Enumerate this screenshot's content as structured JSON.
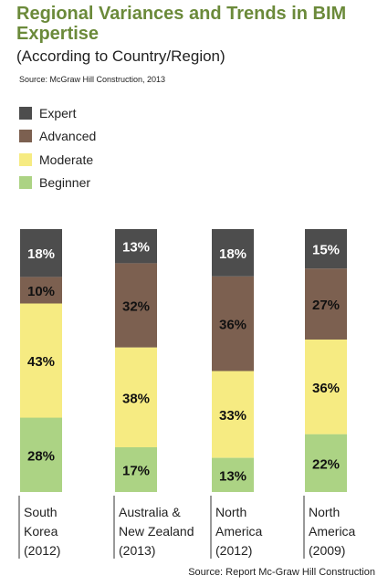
{
  "title": "Regional Variances and Trends in BIM Expertise",
  "subtitle": "(According to Country/Region)",
  "source_top": "Source: McGraw Hill Construction, 2013",
  "source_bottom": "Source: Report Mc-Graw Hill Construction",
  "colors": {
    "Expert": "#4d4d4d",
    "Advanced": "#7c6050",
    "Moderate": "#f6eb82",
    "Beginner": "#acd384",
    "title": "#6b8a3a"
  },
  "chart_data": {
    "type": "bar",
    "stacked": true,
    "title": "Regional Variances and Trends in BIM Expertise",
    "subtitle": "(According to Country/Region)",
    "legend_position": "top-left",
    "grid": false,
    "categories": [
      [
        "South",
        "Korea",
        "(2012)"
      ],
      [
        "Australia &",
        "New Zealand",
        "(2013)"
      ],
      [
        "North",
        "America",
        "(2012)"
      ],
      [
        "North",
        "America",
        "(2009)"
      ]
    ],
    "series": [
      {
        "name": "Beginner",
        "values": [
          28,
          17,
          13,
          22
        ],
        "labels": [
          "28%",
          "17%",
          "13%",
          "22%"
        ]
      },
      {
        "name": "Moderate",
        "values": [
          43,
          38,
          33,
          36
        ],
        "labels": [
          "43%",
          "38%",
          "33%",
          "36%"
        ]
      },
      {
        "name": "Advanced",
        "values": [
          10,
          32,
          36,
          27
        ],
        "labels": [
          "10%",
          "32%",
          "36%",
          "27%"
        ]
      },
      {
        "name": "Expert",
        "values": [
          18,
          13,
          18,
          15
        ],
        "labels": [
          "18%",
          "13%",
          "18%",
          "15%"
        ]
      }
    ],
    "legend_order": [
      "Expert",
      "Advanced",
      "Moderate",
      "Beginner"
    ]
  }
}
